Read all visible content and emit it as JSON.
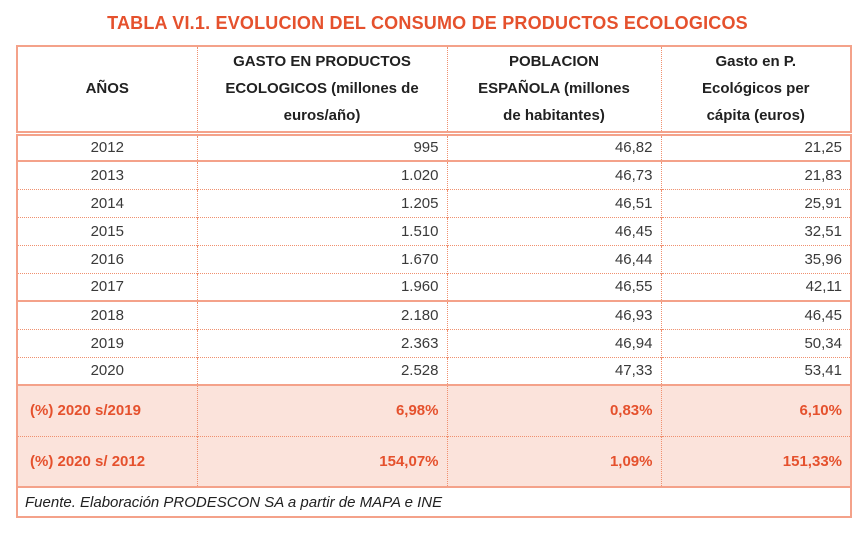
{
  "title": "TABLA VI.1. EVOLUCION DEL CONSUMO DE PRODUCTOS ECOLOGICOS",
  "colors": {
    "accent_orange": "#e5512d",
    "border_solid": "#f4a28a",
    "border_dotted": "#f0906f",
    "summary_background": "#fbe3db",
    "body_text": "#3a3a3a"
  },
  "table": {
    "headers": [
      "AÑOS",
      "GASTO EN PRODUCTOS\nECOLOGICOS (millones de\neuros/año)",
      "POBLACION\nESPAÑOLA (millones\nde habitantes)",
      "Gasto en P.\nEcológicos per\ncápita (euros)"
    ],
    "rows": [
      {
        "year": "2012",
        "gasto": "995",
        "poblacion": "46,82",
        "per_capita": "21,25"
      },
      {
        "year": "2013",
        "gasto": "1.020",
        "poblacion": "46,73",
        "per_capita": "21,83"
      },
      {
        "year": "2014",
        "gasto": "1.205",
        "poblacion": "46,51",
        "per_capita": "25,91"
      },
      {
        "year": "2015",
        "gasto": "1.510",
        "poblacion": "46,45",
        "per_capita": "32,51"
      },
      {
        "year": "2016",
        "gasto": "1.670",
        "poblacion": "46,44",
        "per_capita": "35,96"
      },
      {
        "year": "2017",
        "gasto": "1.960",
        "poblacion": "46,55",
        "per_capita": "42,11"
      },
      {
        "year": "2018",
        "gasto": "2.180",
        "poblacion": "46,93",
        "per_capita": "46,45"
      },
      {
        "year": "2019",
        "gasto": "2.363",
        "poblacion": "46,94",
        "per_capita": "50,34"
      },
      {
        "year": "2020",
        "gasto": "2.528",
        "poblacion": "47,33",
        "per_capita": "53,41"
      }
    ],
    "summary_rows": [
      {
        "label": "(%) 2020 s/2019",
        "gasto": "6,98%",
        "poblacion": "0,83%",
        "per_capita": "6,10%"
      },
      {
        "label": "(%) 2020 s/ 2012",
        "gasto": "154,07%",
        "poblacion": "1,09%",
        "per_capita": "151,33%"
      }
    ],
    "source": "Fuente. Elaboración PRODESCON SA a partir de MAPA e INE"
  },
  "chart_data": {
    "type": "table",
    "title": "TABLA VI.1. EVOLUCION DEL CONSUMO DE PRODUCTOS ECOLOGICOS",
    "columns": [
      "AÑOS",
      "GASTO EN PRODUCTOS ECOLOGICOS (millones de euros/año)",
      "POBLACION ESPAÑOLA (millones de habitantes)",
      "Gasto en P. Ecológicos per cápita (euros)"
    ],
    "years": [
      2012,
      2013,
      2014,
      2015,
      2016,
      2017,
      2018,
      2019,
      2020
    ],
    "gasto_millones_euros": [
      995,
      1020,
      1205,
      1510,
      1670,
      1960,
      2180,
      2363,
      2528
    ],
    "poblacion_millones": [
      46.82,
      46.73,
      46.51,
      46.45,
      46.44,
      46.55,
      46.93,
      46.94,
      47.33
    ],
    "gasto_per_capita_euros": [
      21.25,
      21.83,
      25.91,
      32.51,
      35.96,
      42.11,
      46.45,
      50.34,
      53.41
    ],
    "pct_2020_vs_2019": {
      "gasto": 6.98,
      "poblacion": 0.83,
      "per_capita": 6.1
    },
    "pct_2020_vs_2012": {
      "gasto": 154.07,
      "poblacion": 1.09,
      "per_capita": 151.33
    },
    "source": "Fuente. Elaboración PRODESCON SA a partir de MAPA e INE"
  }
}
